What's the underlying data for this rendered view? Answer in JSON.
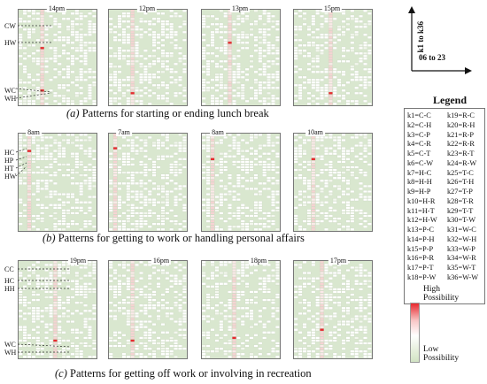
{
  "rows": [
    {
      "caption_prefix": "(a)",
      "caption_text": "Patterns  for starting or ending lunch break",
      "times": [
        "14pm",
        "12pm",
        "13pm",
        "15pm"
      ],
      "labels": [
        "CW",
        "HW",
        "WC",
        "WH"
      ]
    },
    {
      "caption_prefix": "(b)",
      "caption_text": "Patterns for getting to work or handling personal affairs",
      "times": [
        "8am",
        "7am",
        "8am",
        "10am"
      ],
      "labels": [
        "HC",
        "HP",
        "HT",
        "HW"
      ]
    },
    {
      "caption_prefix": "(c)",
      "caption_text": "Patterns for getting off work or involving in recreation",
      "times": [
        "19pm",
        "16pm",
        "18pm",
        "17pm"
      ],
      "labels": [
        "CC",
        "HC",
        "HH",
        "WC",
        "WH"
      ]
    }
  ],
  "axis": {
    "vertical": "k1 to k36",
    "horizontal": "06 to 23"
  },
  "legend": {
    "title": "Legend",
    "col1": [
      "k1=C-C",
      "k2=C-H",
      "k3=C-P",
      "k4=C-R",
      "k5=C-T",
      "k6=C-W",
      "k7=H-C",
      "k8=H-H",
      "k9=H-P",
      "k10=H-R",
      "k11=H-T",
      "k12=H-W",
      "k13=P-C",
      "k14=P-H",
      "k15=P-P",
      "k16=P-R",
      "k17=P-T",
      "k18=P-W"
    ],
    "col2": [
      "k19=R-C",
      "k20=R-H",
      "k21=R-P",
      "k22=R-R",
      "k23=R-T",
      "k24=R-W",
      "k25=T-C",
      "k26=T-H",
      "k27=T-P",
      "k28=T-R",
      "k29=T-T",
      "k30=T-W",
      "k31=W-C",
      "k32=W-H",
      "k33=W-P",
      "k34=W-R",
      "k35=W-T",
      "k36=W-W"
    ]
  },
  "scale": {
    "high": "High\nPossibility",
    "low": "Low\nPossibility",
    "high_color": "#e8292f",
    "low_color": "#d2e3c4"
  }
}
